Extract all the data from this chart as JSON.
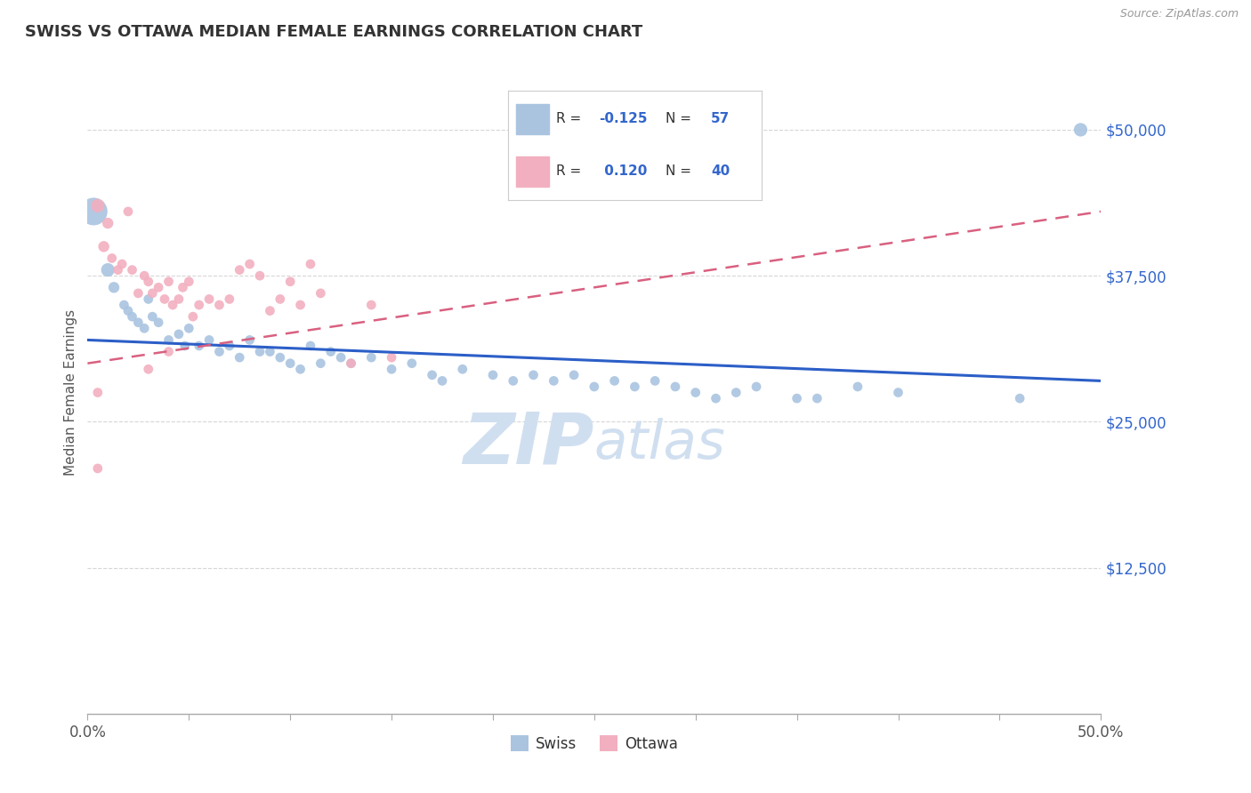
{
  "title": "SWISS VS OTTAWA MEDIAN FEMALE EARNINGS CORRELATION CHART",
  "source": "Source: ZipAtlas.com",
  "ylabel": "Median Female Earnings",
  "xlim": [
    0.0,
    0.5
  ],
  "ylim": [
    0,
    55000
  ],
  "yticks": [
    0,
    12500,
    25000,
    37500,
    50000
  ],
  "ytick_labels": [
    "",
    "$12,500",
    "$25,000",
    "$37,500",
    "$50,000"
  ],
  "xtick_labels": [
    "0.0%",
    "",
    "",
    "",
    "",
    "",
    "",
    "",
    "",
    "",
    "50.0%"
  ],
  "background_color": "#ffffff",
  "swiss_color": "#aac4e0",
  "ottawa_color": "#f2afc0",
  "swiss_line_color": "#2b5ec7",
  "ottawa_line_color": "#d96080",
  "grid_color": "#cccccc",
  "watermark": "ZIPatlas",
  "watermark_color": "#d0dff0",
  "swiss_points": [
    [
      0.003,
      43000,
      500
    ],
    [
      0.01,
      38000,
      120
    ],
    [
      0.013,
      36500,
      80
    ],
    [
      0.018,
      35000,
      60
    ],
    [
      0.02,
      34500,
      60
    ],
    [
      0.022,
      34000,
      60
    ],
    [
      0.025,
      33500,
      60
    ],
    [
      0.028,
      33000,
      60
    ],
    [
      0.03,
      35500,
      60
    ],
    [
      0.032,
      34000,
      60
    ],
    [
      0.035,
      33500,
      60
    ],
    [
      0.04,
      32000,
      60
    ],
    [
      0.045,
      32500,
      60
    ],
    [
      0.048,
      31500,
      60
    ],
    [
      0.05,
      33000,
      60
    ],
    [
      0.055,
      31500,
      60
    ],
    [
      0.06,
      32000,
      60
    ],
    [
      0.065,
      31000,
      60
    ],
    [
      0.07,
      31500,
      60
    ],
    [
      0.075,
      30500,
      60
    ],
    [
      0.08,
      32000,
      60
    ],
    [
      0.085,
      31000,
      60
    ],
    [
      0.09,
      31000,
      60
    ],
    [
      0.095,
      30500,
      60
    ],
    [
      0.1,
      30000,
      60
    ],
    [
      0.105,
      29500,
      60
    ],
    [
      0.11,
      31500,
      60
    ],
    [
      0.115,
      30000,
      60
    ],
    [
      0.12,
      31000,
      60
    ],
    [
      0.125,
      30500,
      60
    ],
    [
      0.13,
      30000,
      60
    ],
    [
      0.14,
      30500,
      60
    ],
    [
      0.15,
      29500,
      60
    ],
    [
      0.16,
      30000,
      60
    ],
    [
      0.17,
      29000,
      60
    ],
    [
      0.175,
      28500,
      60
    ],
    [
      0.185,
      29500,
      60
    ],
    [
      0.2,
      29000,
      60
    ],
    [
      0.21,
      28500,
      60
    ],
    [
      0.22,
      29000,
      60
    ],
    [
      0.23,
      28500,
      60
    ],
    [
      0.24,
      29000,
      60
    ],
    [
      0.25,
      28000,
      60
    ],
    [
      0.26,
      28500,
      60
    ],
    [
      0.27,
      28000,
      60
    ],
    [
      0.28,
      28500,
      60
    ],
    [
      0.29,
      28000,
      60
    ],
    [
      0.3,
      27500,
      60
    ],
    [
      0.31,
      27000,
      60
    ],
    [
      0.32,
      27500,
      60
    ],
    [
      0.33,
      28000,
      60
    ],
    [
      0.35,
      27000,
      60
    ],
    [
      0.36,
      27000,
      60
    ],
    [
      0.38,
      28000,
      60
    ],
    [
      0.4,
      27500,
      60
    ],
    [
      0.46,
      27000,
      60
    ],
    [
      0.49,
      50000,
      120
    ]
  ],
  "ottawa_points": [
    [
      0.005,
      43500,
      120
    ],
    [
      0.008,
      40000,
      80
    ],
    [
      0.01,
      42000,
      80
    ],
    [
      0.012,
      39000,
      60
    ],
    [
      0.015,
      38000,
      60
    ],
    [
      0.017,
      38500,
      60
    ],
    [
      0.02,
      43000,
      60
    ],
    [
      0.022,
      38000,
      60
    ],
    [
      0.025,
      36000,
      60
    ],
    [
      0.028,
      37500,
      60
    ],
    [
      0.03,
      37000,
      60
    ],
    [
      0.032,
      36000,
      60
    ],
    [
      0.035,
      36500,
      60
    ],
    [
      0.038,
      35500,
      60
    ],
    [
      0.04,
      37000,
      60
    ],
    [
      0.042,
      35000,
      60
    ],
    [
      0.045,
      35500,
      60
    ],
    [
      0.047,
      36500,
      60
    ],
    [
      0.05,
      37000,
      60
    ],
    [
      0.052,
      34000,
      60
    ],
    [
      0.055,
      35000,
      60
    ],
    [
      0.06,
      35500,
      60
    ],
    [
      0.065,
      35000,
      60
    ],
    [
      0.07,
      35500,
      60
    ],
    [
      0.075,
      38000,
      60
    ],
    [
      0.08,
      38500,
      60
    ],
    [
      0.085,
      37500,
      60
    ],
    [
      0.09,
      34500,
      60
    ],
    [
      0.095,
      35500,
      60
    ],
    [
      0.1,
      37000,
      60
    ],
    [
      0.105,
      35000,
      60
    ],
    [
      0.11,
      38500,
      60
    ],
    [
      0.115,
      36000,
      60
    ],
    [
      0.13,
      30000,
      60
    ],
    [
      0.14,
      35000,
      60
    ],
    [
      0.15,
      30500,
      60
    ],
    [
      0.03,
      29500,
      60
    ],
    [
      0.04,
      31000,
      60
    ],
    [
      0.005,
      27500,
      60
    ],
    [
      0.005,
      21000,
      60
    ]
  ],
  "legend_swiss_label": "R = -0.125   N = 57",
  "legend_ottawa_label": "R =  0.120   N = 40",
  "bottom_legend_swiss": "Swiss",
  "bottom_legend_ottawa": "Ottawa"
}
